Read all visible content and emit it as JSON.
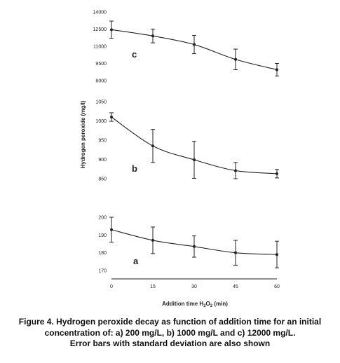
{
  "chart_data": {
    "type": "line",
    "x": [
      0,
      15,
      30,
      45,
      60
    ],
    "x_tick_labels": [
      "0",
      "15",
      "30",
      "45",
      "60"
    ],
    "xlabel_prefix": "Addition time H",
    "xlabel_sub1": "2",
    "xlabel_mid": "O",
    "xlabel_sub2": "2",
    "xlabel_suffix": " (min)",
    "ylabel": "Hydrogen peroxide (mg/l)",
    "panels": [
      {
        "label": "c",
        "ylim": [
          8000,
          14000
        ],
        "yticks": [
          8000,
          9500,
          11000,
          12500,
          14000
        ],
        "ytick_labels": [
          "8000",
          "9500",
          "11000",
          "12500",
          "14000"
        ],
        "values": [
          12450,
          11900,
          11150,
          9850,
          8950
        ],
        "errors": [
          750,
          600,
          800,
          900,
          550
        ]
      },
      {
        "label": "b",
        "ylim": [
          850,
          1050
        ],
        "yticks": [
          850,
          900,
          950,
          1000,
          1050
        ],
        "ytick_labels": [
          "850",
          "900",
          "950",
          "1000",
          "1050"
        ],
        "values": [
          1010,
          935,
          899,
          871,
          863
        ],
        "errors": [
          11,
          43,
          48,
          21,
          11
        ]
      },
      {
        "label": "a",
        "ylim": [
          170,
          200
        ],
        "yticks": [
          170,
          180,
          190,
          200
        ],
        "ytick_labels": [
          "170",
          "180",
          "190",
          "200"
        ],
        "values": [
          193,
          187,
          183.5,
          180,
          179
        ],
        "errors": [
          7,
          7.5,
          6,
          7,
          7.5
        ]
      }
    ]
  },
  "caption": {
    "line1": "Figure 4. Hydrogen peroxide decay as function of addition time for an initial",
    "line2": "concentration of: a) 200 mg/L, b) 1000 mg/L and c) 12000 mg/L.",
    "line3": "Error bars with standard deviation are also shown"
  }
}
